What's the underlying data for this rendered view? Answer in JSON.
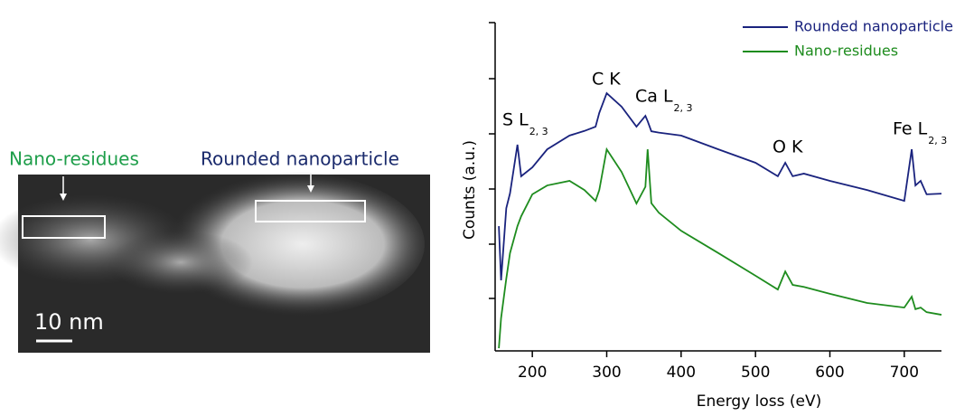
{
  "image": {
    "labels": [
      "Nano-residues",
      "Rounded nanoparticle"
    ],
    "scale_bar": "10 nm"
  },
  "chart_data": {
    "type": "line",
    "x_label": "Energy loss (eV)",
    "y_label": "Counts (a.u.)",
    "x": [
      155,
      158,
      165,
      170,
      180,
      185,
      200,
      220,
      250,
      270,
      285,
      290,
      300,
      320,
      340,
      352,
      355,
      360,
      370,
      400,
      450,
      500,
      530,
      540,
      550,
      565,
      600,
      650,
      700,
      710,
      715,
      722,
      730,
      750
    ],
    "series": [
      {
        "name": "Rounded nanoparticle",
        "color": "#1a237e",
        "values": [
          38,
          21.5,
          43.5,
          48,
          62.8,
          53.2,
          55.9,
          61.4,
          65.6,
          67,
          68.3,
          72.5,
          78.5,
          74.4,
          68.3,
          71.6,
          70,
          66.9,
          66.5,
          65.6,
          61.4,
          57.3,
          53.2,
          57.3,
          53.2,
          54,
          51.8,
          49,
          45.7,
          61.4,
          50.4,
          51.8,
          47.7,
          47.9
        ]
      },
      {
        "name": "Nano-residues",
        "color": "#1e8c1e",
        "values": [
          0.8,
          10,
          22,
          29.8,
          38,
          41,
          47.7,
          50.4,
          51.8,
          49,
          45.7,
          49,
          61.4,
          54.5,
          44.9,
          50,
          61.4,
          45,
          42.1,
          36.6,
          29.8,
          22.9,
          18.7,
          24.2,
          20.1,
          19.5,
          17.4,
          14.6,
          13.2,
          16.5,
          12.7,
          13.2,
          11.8,
          11
        ]
      }
    ],
    "xlim": [
      150,
      750
    ],
    "xticks": [
      200,
      300,
      400,
      500,
      600,
      700
    ],
    "ylim": [
      0,
      100
    ],
    "legend": "top-right",
    "annotations": [
      {
        "text": "S L",
        "sub": "2, 3"
      },
      {
        "text": "C K"
      },
      {
        "text": "Ca L",
        "sub": "2, 3"
      },
      {
        "text": "O K"
      },
      {
        "text": "Fe L",
        "sub": "2, 3"
      }
    ]
  }
}
